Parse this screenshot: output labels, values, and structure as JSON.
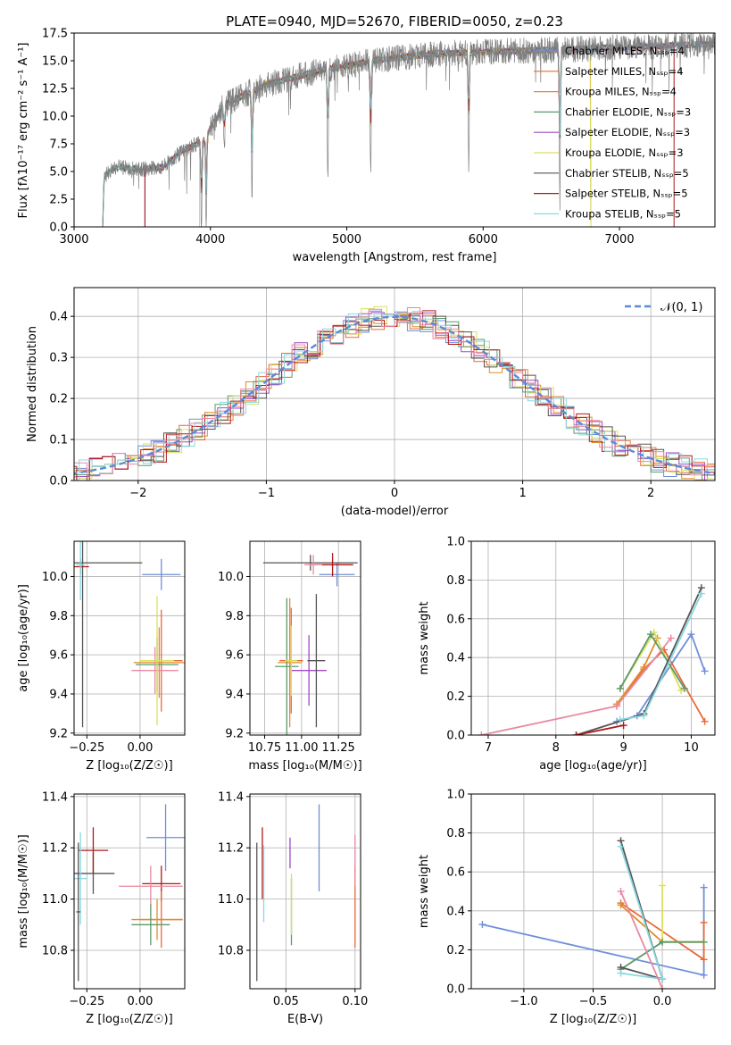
{
  "chart_data": [
    {
      "id": "spectrum",
      "type": "line",
      "title": "PLATE=0940, MJD=52670, FIBERID=0050, z=0.23",
      "xlabel": "wavelength [Angstrom, rest frame]",
      "ylabel": "Flux [fλ10⁻¹⁷ erg cm⁻² s⁻¹ A⁻¹]",
      "xlim": [
        3000,
        7700
      ],
      "ylim": [
        0,
        17.5
      ],
      "xticks": [
        3000,
        4000,
        5000,
        6000,
        7000
      ],
      "yticks": [
        0.0,
        2.5,
        5.0,
        7.5,
        10.0,
        12.5,
        15.0,
        17.5
      ],
      "ytick_labels": [
        "0.0",
        "2.5",
        "5.0",
        "7.5",
        "10.0",
        "12.5",
        "15.0",
        "17.5"
      ],
      "data_color": "#808080",
      "continuum": [
        [
          3210,
          0
        ],
        [
          3220,
          4.6
        ],
        [
          3300,
          5.4
        ],
        [
          3500,
          5.2
        ],
        [
          3650,
          5.4
        ],
        [
          3800,
          6.9
        ],
        [
          3950,
          7.8
        ],
        [
          4100,
          11.0
        ],
        [
          4400,
          12.8
        ],
        [
          4800,
          14.1
        ],
        [
          5200,
          15.0
        ],
        [
          5600,
          15.6
        ],
        [
          6000,
          15.8
        ],
        [
          6300,
          15.9
        ],
        [
          6600,
          16.0
        ],
        [
          7000,
          16.2
        ],
        [
          7400,
          16.4
        ],
        [
          7700,
          16.5
        ]
      ],
      "absorption_lines": [
        [
          3934,
          8.3
        ],
        [
          3969,
          8.6
        ],
        [
          4102,
          3.5
        ],
        [
          4305,
          9.0
        ],
        [
          4861,
          8.9
        ],
        [
          5175,
          9.8
        ],
        [
          5894,
          10.2
        ],
        [
          6563,
          13.4
        ]
      ],
      "model_cutoffs": [
        3520,
        3920,
        3210,
        3210,
        3520,
        3920,
        3210,
        3520,
        3210
      ],
      "model_end": [
        7700,
        7700,
        6790,
        7700,
        7700,
        6790,
        7700,
        7400,
        7700
      ],
      "legend_location": "right",
      "series": [
        {
          "name": "Chabrier MILES, Nₛₛₚ=4",
          "color": "#6f8fd8"
        },
        {
          "name": "Salpeter MILES, Nₛₛₚ=4",
          "color": "#e86a3a"
        },
        {
          "name": "Kroupa MILES, Nₛₛₚ=4",
          "color": "#e08e2a"
        },
        {
          "name": "Chabrier ELODIE, Nₛₛₚ=3",
          "color": "#5c9a6a"
        },
        {
          "name": "Salpeter ELODIE, Nₛₛₚ=3",
          "color": "#a04ac4"
        },
        {
          "name": "Kroupa ELODIE, Nₛₛₚ=3",
          "color": "#d8e060"
        },
        {
          "name": "Chabrier STELIB, Nₛₛₚ=5",
          "color": "#555555"
        },
        {
          "name": "Salpeter STELIB, Nₛₛₚ=5",
          "color": "#b01818"
        },
        {
          "name": "Kroupa STELIB, Nₛₛₚ=5",
          "color": "#8ad8e0"
        }
      ]
    },
    {
      "id": "residuals",
      "type": "histogram",
      "xlabel": "(data-model)/error",
      "ylabel": "Normed distribution",
      "xlim": [
        -2.5,
        2.5
      ],
      "ylim": [
        0,
        0.47
      ],
      "xticks": [
        -2,
        -1,
        0,
        1,
        2
      ],
      "xtick_labels": [
        "−2",
        "−1",
        "0",
        "1",
        "2"
      ],
      "yticks": [
        0.0,
        0.1,
        0.2,
        0.3,
        0.4
      ],
      "ytick_labels": [
        "0.0",
        "0.1",
        "0.2",
        "0.3",
        "0.4"
      ],
      "grid": true,
      "bin_edges_start": -2.6,
      "bin_width": 0.1,
      "bin_count": 52,
      "bin_noise": 0.03,
      "overlay": {
        "name": "𝒩(0, 1)",
        "style": "dashed",
        "color": "#5b8ad8",
        "mean": 0,
        "sigma": 1
      },
      "series_colors": [
        "#6f8fd8",
        "#e86a3a",
        "#e08e2a",
        "#5c9a6a",
        "#a04ac4",
        "#d8e060",
        "#555555",
        "#b01818",
        "#8ad8e0",
        "#e88aa0"
      ],
      "legend_location": "top-right"
    },
    {
      "id": "age-vs-z",
      "type": "errorbar",
      "xlabel": "Z [log₁₀(Z/Z☉)]",
      "ylabel": "age  [log₁₀(age/yr)]",
      "xlim": [
        -0.31,
        0.21
      ],
      "ylim": [
        9.19,
        10.18
      ],
      "xticks": [
        -0.25,
        0.0
      ],
      "xtick_labels": [
        "−0.25",
        "0.00"
      ],
      "yticks": [
        9.2,
        9.4,
        9.6,
        9.8,
        10.0
      ],
      "ytick_labels": [
        "9.2",
        "9.4",
        "9.6",
        "9.8",
        "10.0"
      ],
      "grid": true,
      "points": [
        {
          "x": 0.1,
          "y": 10.01,
          "xerr": 0.09,
          "yerr": 0.08,
          "color": "#6f8fd8"
        },
        {
          "x": 0.1,
          "y": 9.57,
          "xerr": 0.1,
          "yerr": 0.26,
          "color": "#e86a3a"
        },
        {
          "x": 0.09,
          "y": 9.56,
          "xerr": 0.12,
          "yerr": 0.18,
          "color": "#e08e2a"
        },
        {
          "x": 0.08,
          "y": 9.55,
          "xerr": 0.1,
          "yerr": 0.14,
          "color": "#5c9a6a"
        },
        {
          "x": 0.07,
          "y": 9.52,
          "xerr": 0.11,
          "yerr": 0.12,
          "color": "#e88aa0"
        },
        {
          "x": 0.08,
          "y": 9.57,
          "xerr": 0.08,
          "yerr": 0.33,
          "color": "#d8e060"
        },
        {
          "x": -0.27,
          "y": 10.07,
          "xerr": 0.28,
          "yerr": 0.84,
          "color": "#555555"
        },
        {
          "x": -0.28,
          "y": 10.05,
          "xerr": 0.04,
          "yerr": 0.04,
          "color": "#b01818"
        },
        {
          "x": -0.28,
          "y": 10.06,
          "xerr": 0.02,
          "yerr": 0.18,
          "color": "#8ad8e0"
        }
      ]
    },
    {
      "id": "age-vs-mass",
      "type": "errorbar",
      "xlabel": "mass [log₁₀(M/M☉)]",
      "xlim": [
        10.65,
        11.4
      ],
      "ylim": [
        9.19,
        10.18
      ],
      "xticks": [
        10.75,
        11.0,
        11.25
      ],
      "xtick_labels": [
        "10.75",
        "11.00",
        "11.25"
      ],
      "yticks": [
        9.2,
        9.4,
        9.6,
        9.8,
        10.0
      ],
      "ytick_labels": [
        "9.2",
        "9.4",
        "9.6",
        "9.8",
        "10.0"
      ],
      "grid": true,
      "points": [
        {
          "x": 11.24,
          "y": 10.01,
          "xerr": 0.12,
          "yerr": 0.06,
          "color": "#6f8fd8"
        },
        {
          "x": 11.06,
          "y": 10.07,
          "xerr": 0.32,
          "yerr": 0.04,
          "color": "#555555"
        },
        {
          "x": 11.21,
          "y": 10.06,
          "xerr": 0.14,
          "yerr": 0.06,
          "color": "#b01818"
        },
        {
          "x": 11.08,
          "y": 10.06,
          "xerr": 0.06,
          "yerr": 0.05,
          "color": "#e88aa0"
        },
        {
          "x": 10.93,
          "y": 9.57,
          "xerr": 0.08,
          "yerr": 0.27,
          "color": "#e86a3a"
        },
        {
          "x": 10.92,
          "y": 9.56,
          "xerr": 0.08,
          "yerr": 0.33,
          "color": "#e08e2a"
        },
        {
          "x": 10.9,
          "y": 9.54,
          "xerr": 0.08,
          "yerr": 0.35,
          "color": "#5c9a6a"
        },
        {
          "x": 11.05,
          "y": 9.52,
          "xerr": 0.12,
          "yerr": 0.18,
          "color": "#a04ac4"
        },
        {
          "x": 11.1,
          "y": 9.57,
          "xerr": 0.06,
          "yerr": 0.34,
          "color": "#555555"
        },
        {
          "x": 10.93,
          "y": 9.57,
          "xerr": 0.04,
          "yerr": 0.18,
          "color": "#d8e060"
        }
      ]
    },
    {
      "id": "mass-weight-vs-age",
      "type": "line",
      "xlabel": "age  [log₁₀(age/yr)]",
      "ylabel": "mass weight",
      "xlim": [
        6.75,
        10.35
      ],
      "ylim": [
        0,
        1.0
      ],
      "xticks": [
        7,
        8,
        9,
        10
      ],
      "xtick_labels": [
        "7",
        "8",
        "9",
        "10"
      ],
      "yticks": [
        0.0,
        0.2,
        0.4,
        0.6,
        0.8,
        1.0
      ],
      "ytick_labels": [
        "0.0",
        "0.2",
        "0.4",
        "0.6",
        "0.8",
        "1.0"
      ],
      "grid": true,
      "marker": "+",
      "series": [
        {
          "color": "#6f8fd8",
          "x": [
            8.9,
            9.2,
            10.0,
            10.2
          ],
          "y": [
            0.07,
            0.1,
            0.52,
            0.33
          ]
        },
        {
          "color": "#e86a3a",
          "x": [
            8.9,
            9.3,
            9.6,
            10.2
          ],
          "y": [
            0.15,
            0.34,
            0.44,
            0.07
          ]
        },
        {
          "color": "#e08e2a",
          "x": [
            8.9,
            9.3,
            9.5
          ],
          "y": [
            0.16,
            0.35,
            0.5
          ]
        },
        {
          "color": "#d8e060",
          "x": [
            8.95,
            9.45,
            9.85
          ],
          "y": [
            0.24,
            0.53,
            0.23
          ]
        },
        {
          "color": "#5c9a6a",
          "x": [
            8.95,
            9.4,
            9.9
          ],
          "y": [
            0.24,
            0.52,
            0.24
          ]
        },
        {
          "color": "#555555",
          "x": [
            8.3,
            9.3,
            10.15
          ],
          "y": [
            0.0,
            0.11,
            0.76
          ]
        },
        {
          "color": "#b01818",
          "x": [
            8.3,
            9.0
          ],
          "y": [
            0.0,
            0.05
          ]
        },
        {
          "color": "#8ad8e0",
          "x": [
            8.95,
            9.3,
            10.15
          ],
          "y": [
            0.08,
            0.1,
            0.73
          ]
        },
        {
          "color": "#e88aa0",
          "x": [
            6.9,
            8.9,
            9.7
          ],
          "y": [
            0.0,
            0.15,
            0.5
          ]
        }
      ]
    },
    {
      "id": "mass-vs-z",
      "type": "errorbar",
      "xlabel": "Z [log₁₀(Z/Z☉)]",
      "ylabel": "mass [log₁₀(M/M☉)]",
      "xlim": [
        -0.31,
        0.21
      ],
      "ylim": [
        10.65,
        11.41
      ],
      "xticks": [
        -0.25,
        0.0
      ],
      "xtick_labels": [
        "−0.25",
        "0.00"
      ],
      "yticks": [
        10.8,
        11.0,
        11.2,
        11.4
      ],
      "ytick_labels": [
        "10.8",
        "11.0",
        "11.2",
        "11.4"
      ],
      "grid": true,
      "points": [
        {
          "x": 0.12,
          "y": 11.24,
          "xerr": 0.09,
          "yerr": 0.13,
          "color": "#6f8fd8"
        },
        {
          "x": 0.1,
          "y": 11.06,
          "xerr": 0.09,
          "yerr": 0.07,
          "color": "#b01818"
        },
        {
          "x": 0.05,
          "y": 11.05,
          "xerr": 0.15,
          "yerr": 0.08,
          "color": "#e88aa0"
        },
        {
          "x": 0.1,
          "y": 10.92,
          "xerr": 0.1,
          "yerr": 0.11,
          "color": "#e86a3a"
        },
        {
          "x": 0.08,
          "y": 10.92,
          "xerr": 0.12,
          "yerr": 0.08,
          "color": "#e08e2a"
        },
        {
          "x": 0.05,
          "y": 10.9,
          "xerr": 0.09,
          "yerr": 0.08,
          "color": "#5c9a6a"
        },
        {
          "x": -0.22,
          "y": 11.1,
          "xerr": 0.1,
          "yerr": 0.08,
          "color": "#555555"
        },
        {
          "x": -0.22,
          "y": 11.19,
          "xerr": 0.07,
          "yerr": 0.09,
          "color": "#b01818"
        },
        {
          "x": -0.28,
          "y": 11.08,
          "xerr": 0.03,
          "yerr": 0.18,
          "color": "#8ad8e0"
        },
        {
          "x": -0.29,
          "y": 10.95,
          "xerr": 0.01,
          "yerr": 0.27,
          "color": "#555555"
        }
      ]
    },
    {
      "id": "mass-vs-ebv",
      "type": "errorbar",
      "xlabel": "E(B-V)",
      "xlim": [
        0.024,
        0.104
      ],
      "ylim": [
        10.65,
        11.41
      ],
      "xticks": [
        0.05,
        0.1
      ],
      "xtick_labels": [
        "0.05",
        "0.10"
      ],
      "yticks": [
        10.8,
        11.0,
        11.2,
        11.4
      ],
      "ytick_labels": [
        "10.8",
        "11.0",
        "11.2",
        "11.4"
      ],
      "grid": true,
      "points": [
        {
          "x": 0.074,
          "y": 11.2,
          "xerr": 0,
          "yerr": 0.17,
          "color": "#6f8fd8"
        },
        {
          "x": 0.033,
          "y": 11.14,
          "xerr": 0,
          "yerr": 0.14,
          "color": "#b01818"
        },
        {
          "x": 0.034,
          "y": 11.06,
          "xerr": 0,
          "yerr": 0.15,
          "color": "#8ad8e0"
        },
        {
          "x": 0.029,
          "y": 10.95,
          "xerr": 0,
          "yerr": 0.27,
          "color": "#555555"
        },
        {
          "x": 0.053,
          "y": 11.18,
          "xerr": 0,
          "yerr": 0.06,
          "color": "#a04ac4"
        },
        {
          "x": 0.054,
          "y": 10.95,
          "xerr": 0,
          "yerr": 0.13,
          "color": "#5c9a6a"
        },
        {
          "x": 0.054,
          "y": 10.98,
          "xerr": 0,
          "yerr": 0.12,
          "color": "#d8e060"
        },
        {
          "x": 0.1,
          "y": 10.97,
          "xerr": 0,
          "yerr": 0.16,
          "color": "#e86a3a"
        },
        {
          "x": 0.1,
          "y": 11.15,
          "xerr": 0,
          "yerr": 0.1,
          "color": "#e88aa0"
        }
      ]
    },
    {
      "id": "mass-weight-vs-z",
      "type": "line",
      "xlabel": "Z [log₁₀(Z/Z☉)]",
      "ylabel": "mass weight",
      "xlim": [
        -1.38,
        0.38
      ],
      "ylim": [
        0,
        1.0
      ],
      "xticks": [
        -1.0,
        -0.5,
        0.0
      ],
      "xtick_labels": [
        "−1.0",
        "−0.5",
        "0.0"
      ],
      "yticks": [
        0.0,
        0.2,
        0.4,
        0.6,
        0.8,
        1.0
      ],
      "ytick_labels": [
        "0.0",
        "0.2",
        "0.4",
        "0.6",
        "0.8",
        "1.0"
      ],
      "grid": true,
      "marker": "+",
      "series": [
        {
          "color": "#6f8fd8",
          "x": [
            -1.3,
            0.3,
            0.3
          ],
          "y": [
            0.33,
            0.07,
            0.52
          ]
        },
        {
          "color": "#e86a3a",
          "x": [
            -0.3,
            0.3,
            0.3
          ],
          "y": [
            0.44,
            0.15,
            0.34
          ]
        },
        {
          "color": "#e08e2a",
          "x": [
            -0.3,
            0.0,
            0.3
          ],
          "y": [
            0.43,
            0.24,
            0.24
          ]
        },
        {
          "color": "#d8e060",
          "x": [
            0.0,
            0.0,
            0.3
          ],
          "y": [
            0.53,
            0.24,
            0.24
          ]
        },
        {
          "color": "#5c9a6a",
          "x": [
            -0.3,
            0.0,
            0.3
          ],
          "y": [
            0.1,
            0.24,
            0.24
          ]
        },
        {
          "color": "#555555",
          "x": [
            -0.3,
            0.0,
            -0.3
          ],
          "y": [
            0.76,
            0.05,
            0.11
          ]
        },
        {
          "color": "#8ad8e0",
          "x": [
            -0.3,
            0.0,
            -0.3
          ],
          "y": [
            0.73,
            0.05,
            0.08
          ]
        },
        {
          "color": "#e88aa0",
          "x": [
            -0.3,
            0.0
          ],
          "y": [
            0.5,
            0.0
          ]
        }
      ]
    }
  ]
}
